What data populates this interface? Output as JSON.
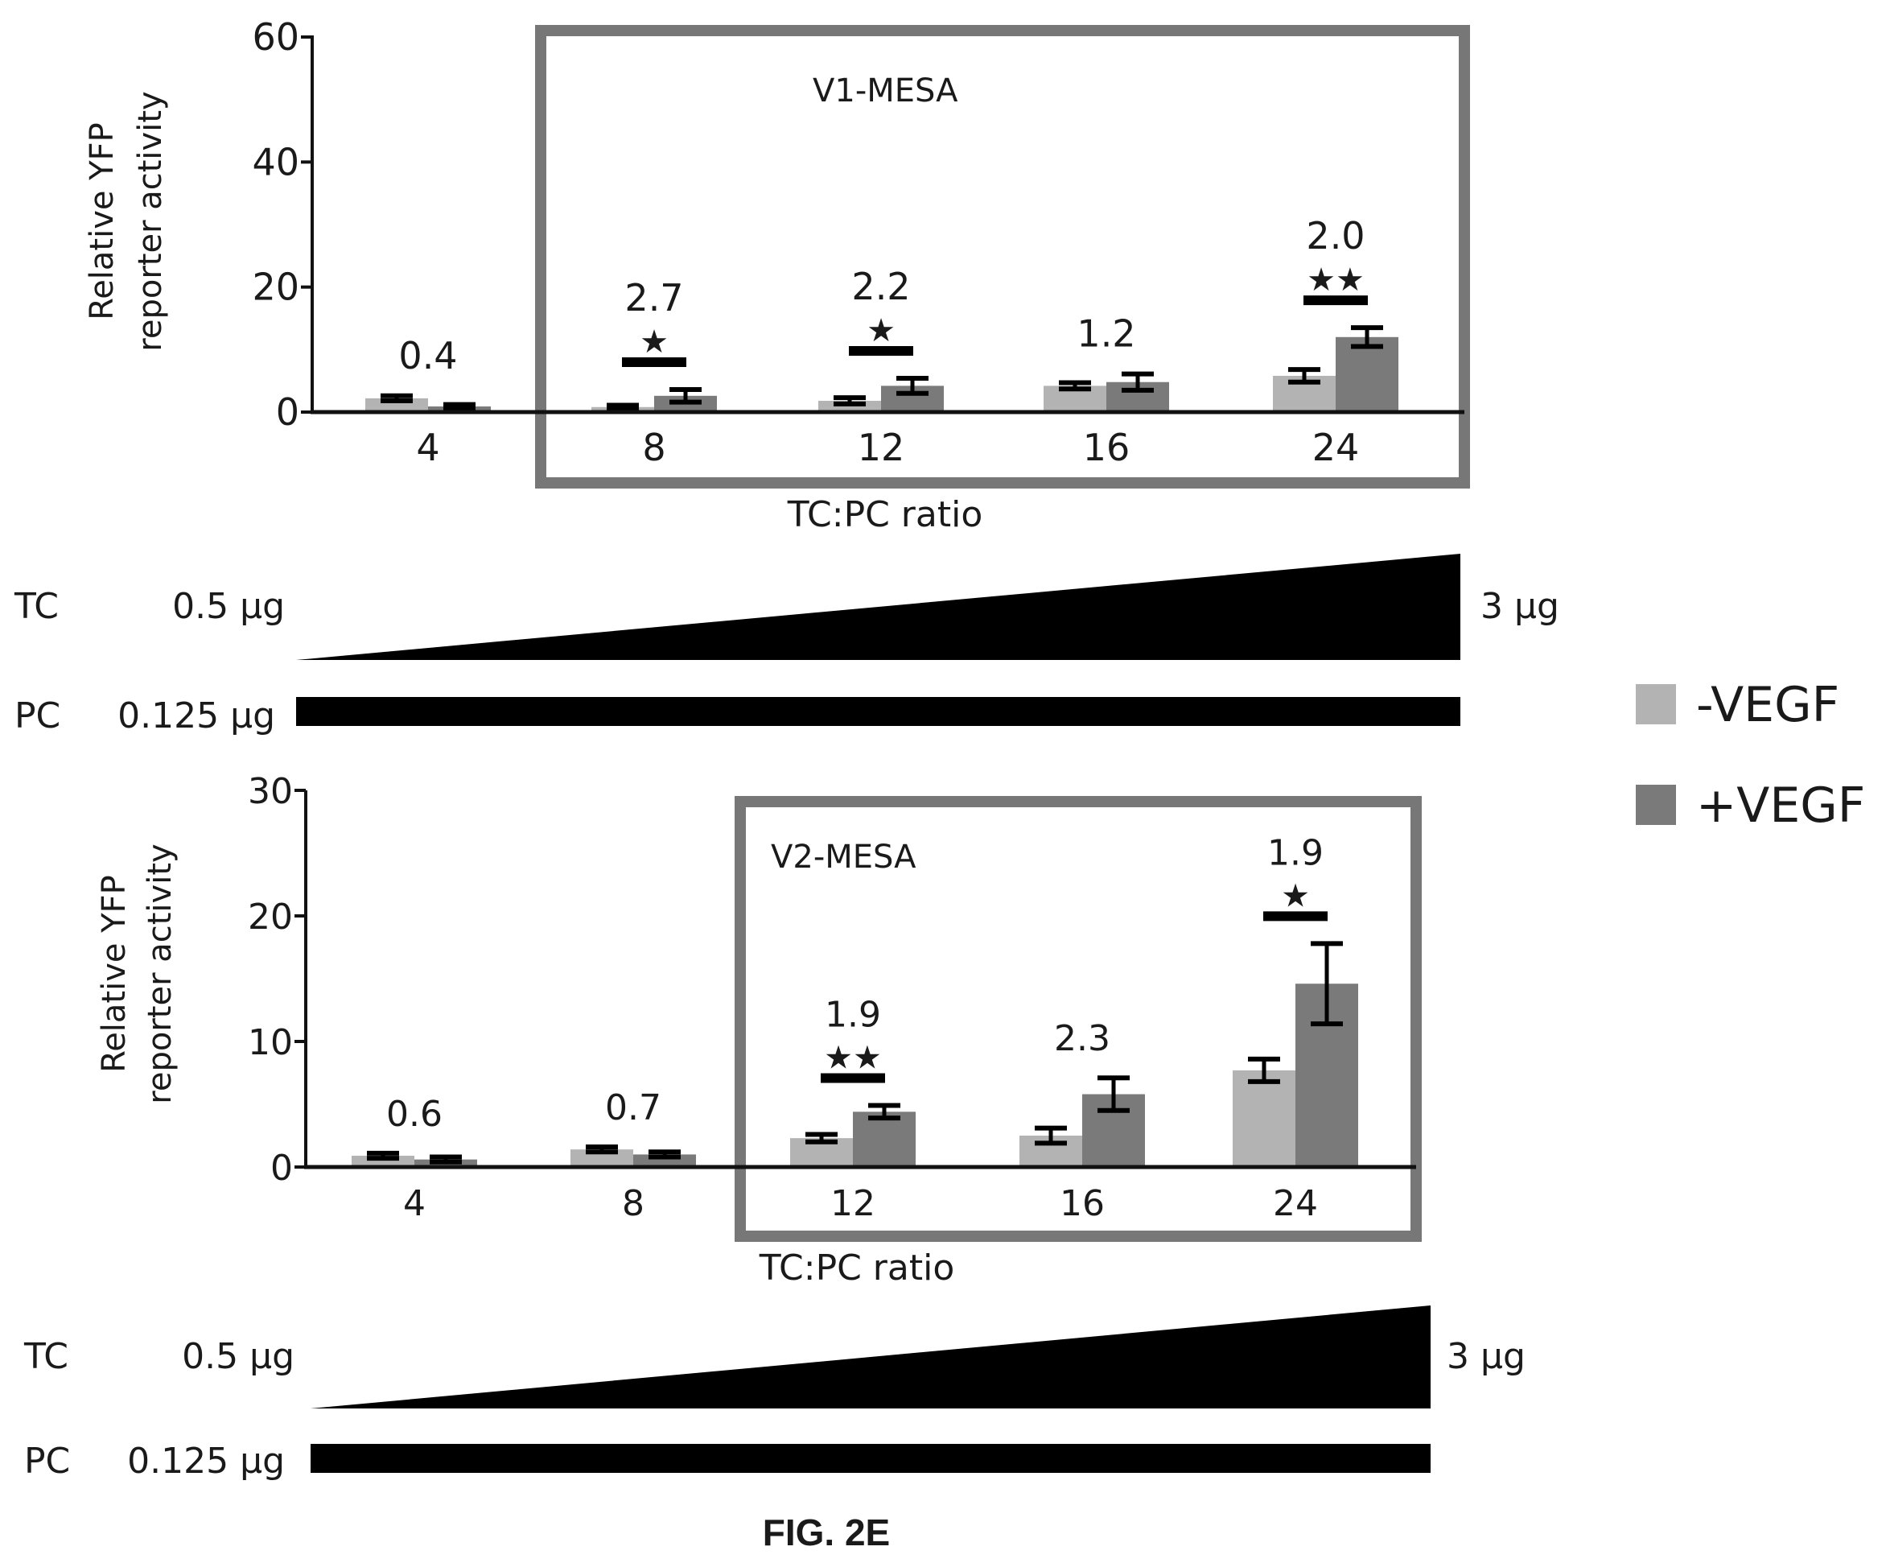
{
  "figure": {
    "caption": "FIG. 2E"
  },
  "legend": {
    "items": [
      {
        "label": "-VEGF",
        "color": "#b3b3b3"
      },
      {
        "label": "+VEGF",
        "color": "#7a7a7a"
      }
    ],
    "placement": "right"
  },
  "chart_data": [
    {
      "type": "bar",
      "ylabel": "Relative YFP reporter activity",
      "ylabel_lines": [
        "Relative YFP",
        "reporter activity"
      ],
      "xlabel": "TC:PC ratio",
      "ylim": [
        0,
        60
      ],
      "yticks": [
        0,
        20,
        40,
        60
      ],
      "box_label": "V1-MESA",
      "categories": [
        "4",
        "8",
        "12",
        "16",
        "24"
      ],
      "series": [
        {
          "name": "-VEGF",
          "values": [
            2.2,
            0.8,
            1.8,
            4.2,
            5.8
          ],
          "errors": [
            0.4,
            0.3,
            0.5,
            0.5,
            1.0
          ]
        },
        {
          "name": "+VEGF",
          "values": [
            0.9,
            2.6,
            4.2,
            4.8,
            12.0
          ],
          "errors": [
            0.3,
            1.0,
            1.2,
            1.3,
            1.5
          ]
        }
      ],
      "fold_labels": [
        "0.4",
        "2.7",
        "2.2",
        "1.2",
        "2.0"
      ],
      "significance": [
        "",
        "*",
        "*",
        "",
        "**"
      ],
      "dose": {
        "tc_label": "TC",
        "tc_start": "0.5 μg",
        "tc_end": "3 μg",
        "pc_label": "PC",
        "pc_amount": "0.125 μg"
      }
    },
    {
      "type": "bar",
      "ylabel": "Relative YFP reporter activity",
      "ylabel_lines": [
        "Relative YFP",
        "reporter activity"
      ],
      "xlabel": "TC:PC ratio",
      "ylim": [
        0,
        30
      ],
      "yticks": [
        0,
        10,
        20,
        30
      ],
      "box_label": "V2-MESA",
      "categories": [
        "4",
        "8",
        "12",
        "16",
        "24"
      ],
      "series": [
        {
          "name": "-VEGF",
          "values": [
            0.9,
            1.4,
            2.3,
            2.5,
            7.7
          ],
          "errors": [
            0.2,
            0.2,
            0.3,
            0.6,
            0.9
          ]
        },
        {
          "name": "+VEGF",
          "values": [
            0.6,
            1.0,
            4.4,
            5.8,
            14.6
          ],
          "errors": [
            0.2,
            0.2,
            0.5,
            1.3,
            3.2
          ]
        }
      ],
      "fold_labels": [
        "0.6",
        "0.7",
        "1.9",
        "2.3",
        "1.9"
      ],
      "significance": [
        "",
        "",
        "**",
        "",
        "*"
      ],
      "dose": {
        "tc_label": "TC",
        "tc_start": "0.5 μg",
        "tc_end": "3 μg",
        "pc_label": "PC",
        "pc_amount": "0.125 μg"
      }
    }
  ]
}
